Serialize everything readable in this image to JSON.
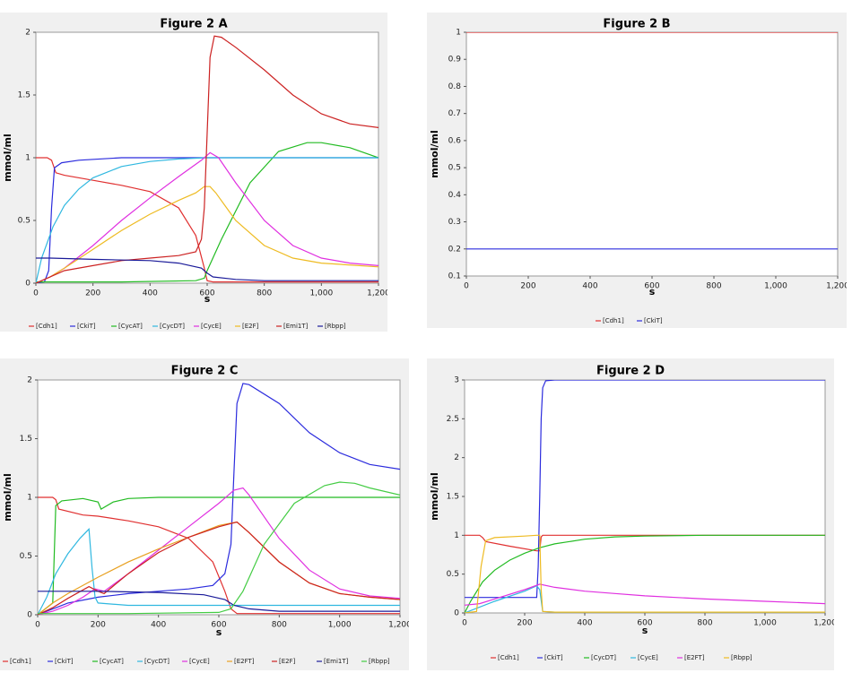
{
  "chart_data": [
    {
      "id": "A",
      "type": "line",
      "title": "Figure 2 A",
      "xlabel": "s",
      "ylabel": "mmol/ml",
      "xlim": [
        0,
        1200
      ],
      "ylim": [
        0,
        2
      ],
      "xticks": [
        0,
        200,
        400,
        600,
        800,
        1000,
        1200
      ],
      "xtick_labels": [
        "0",
        "200",
        "400",
        "600",
        "800",
        "1,000",
        "1,200"
      ],
      "yticks": [
        0,
        0.5,
        1,
        1.5,
        2
      ],
      "ytick_labels": [
        "0",
        "0.5",
        "1",
        "1.5",
        "2"
      ],
      "legend": "bottom",
      "grid": false,
      "series": [
        {
          "name": "[Cdh1]",
          "color": "#e03030",
          "x": [
            0,
            40,
            55,
            70,
            100,
            200,
            300,
            400,
            500,
            560,
            590,
            600,
            620,
            700,
            900,
            1200
          ],
          "y": [
            1,
            1,
            0.98,
            0.88,
            0.86,
            0.82,
            0.78,
            0.73,
            0.6,
            0.38,
            0.12,
            0.02,
            0.01,
            0.01,
            0.01,
            0.01
          ]
        },
        {
          "name": "[CkiT]",
          "color": "#2b2bdd",
          "x": [
            0,
            30,
            45,
            55,
            65,
            90,
            150,
            300,
            600,
            900,
            1200
          ],
          "y": [
            0,
            0.01,
            0.1,
            0.6,
            0.92,
            0.96,
            0.98,
            1.0,
            1.0,
            1.0,
            1.0
          ]
        },
        {
          "name": "[CycAT]",
          "color": "#22bb22",
          "x": [
            0,
            300,
            560,
            590,
            600,
            650,
            750,
            850,
            950,
            1000,
            1100,
            1200
          ],
          "y": [
            0.01,
            0.01,
            0.02,
            0.04,
            0.1,
            0.35,
            0.8,
            1.05,
            1.12,
            1.12,
            1.08,
            1.0
          ]
        },
        {
          "name": "[CycDT]",
          "color": "#30b8e0",
          "x": [
            0,
            20,
            60,
            100,
            150,
            200,
            300,
            400,
            500,
            600,
            800,
            1200
          ],
          "y": [
            0,
            0.2,
            0.45,
            0.62,
            0.75,
            0.84,
            0.93,
            0.97,
            0.99,
            1.0,
            1.0,
            1.0
          ]
        },
        {
          "name": "[CycE]",
          "color": "#e030e0",
          "x": [
            0,
            50,
            100,
            200,
            300,
            400,
            500,
            580,
            610,
            640,
            700,
            800,
            900,
            1000,
            1100,
            1200
          ],
          "y": [
            0,
            0.05,
            0.12,
            0.3,
            0.5,
            0.68,
            0.85,
            0.98,
            1.04,
            1.0,
            0.8,
            0.5,
            0.3,
            0.2,
            0.16,
            0.14
          ]
        },
        {
          "name": "[E2F]",
          "color": "#eebb22",
          "x": [
            0,
            50,
            100,
            200,
            300,
            400,
            500,
            560,
            590,
            610,
            630,
            700,
            800,
            900,
            1000,
            1200
          ],
          "y": [
            0,
            0.05,
            0.12,
            0.27,
            0.42,
            0.55,
            0.66,
            0.72,
            0.77,
            0.77,
            0.72,
            0.5,
            0.3,
            0.2,
            0.16,
            0.13
          ]
        },
        {
          "name": "[Emi1T]",
          "color": "#cc2222",
          "x": [
            0,
            100,
            200,
            300,
            400,
            500,
            560,
            580,
            590,
            600,
            610,
            625,
            650,
            700,
            800,
            900,
            1000,
            1100,
            1200
          ],
          "y": [
            0,
            0.1,
            0.14,
            0.18,
            0.2,
            0.22,
            0.25,
            0.35,
            0.6,
            1.2,
            1.8,
            1.97,
            1.96,
            1.88,
            1.7,
            1.5,
            1.35,
            1.27,
            1.24
          ]
        },
        {
          "name": "[Rbpp]",
          "color": "#1a1a99",
          "x": [
            0,
            50,
            200,
            400,
            500,
            580,
            600,
            620,
            700,
            800,
            1000,
            1200
          ],
          "y": [
            0.2,
            0.2,
            0.19,
            0.18,
            0.16,
            0.12,
            0.08,
            0.05,
            0.03,
            0.02,
            0.02,
            0.02
          ]
        }
      ]
    },
    {
      "id": "B",
      "type": "line",
      "title": "Figure 2 B",
      "xlabel": "s",
      "ylabel": "mmol/ml",
      "xlim": [
        0,
        1200
      ],
      "ylim": [
        0.1,
        1
      ],
      "xticks": [
        0,
        200,
        400,
        600,
        800,
        1000,
        1200
      ],
      "xtick_labels": [
        "0",
        "200",
        "400",
        "600",
        "800",
        "1,000",
        "1,200"
      ],
      "yticks": [
        0.1,
        0.2,
        0.3,
        0.4,
        0.5,
        0.6,
        0.7,
        0.8,
        0.9,
        1
      ],
      "ytick_labels": [
        "0.1",
        "0.2",
        "0.3",
        "0.4",
        "0.5",
        "0.6",
        "0.7",
        "0.8",
        "0.9",
        "1"
      ],
      "legend": "bottom",
      "grid": false,
      "series": [
        {
          "name": "[Cdh1]",
          "color": "#e03030",
          "x": [
            0,
            1200
          ],
          "y": [
            1,
            1
          ]
        },
        {
          "name": "[CkiT]",
          "color": "#2b2bdd",
          "x": [
            0,
            1200
          ],
          "y": [
            0.2,
            0.2
          ]
        }
      ]
    },
    {
      "id": "C",
      "type": "line",
      "title": "Figure 2 C",
      "xlabel": "s",
      "ylabel": "mmol/ml",
      "xlim": [
        0,
        1200
      ],
      "ylim": [
        0,
        2
      ],
      "xticks": [
        0,
        200,
        400,
        600,
        800,
        1000,
        1200
      ],
      "xtick_labels": [
        "0",
        "200",
        "400",
        "600",
        "800",
        "1,000",
        "1,200"
      ],
      "yticks": [
        0,
        0.5,
        1,
        1.5,
        2
      ],
      "ytick_labels": [
        "0",
        "0.5",
        "1",
        "1.5",
        "2"
      ],
      "legend": "bottom",
      "grid": false,
      "series": [
        {
          "name": "[Cdh1]",
          "color": "#e03030",
          "x": [
            0,
            50,
            60,
            70,
            150,
            200,
            300,
            400,
            500,
            580,
            620,
            640,
            660,
            700,
            900,
            1200
          ],
          "y": [
            1,
            1,
            0.98,
            0.9,
            0.85,
            0.84,
            0.8,
            0.75,
            0.65,
            0.45,
            0.2,
            0.05,
            0.01,
            0.01,
            0.01,
            0.01
          ]
        },
        {
          "name": "[CkiT]",
          "color": "#2b2bdd",
          "x": [
            0,
            100,
            200,
            300,
            400,
            500,
            580,
            620,
            640,
            650,
            660,
            680,
            700,
            800,
            900,
            1000,
            1100,
            1200
          ],
          "y": [
            0,
            0.1,
            0.15,
            0.18,
            0.2,
            0.22,
            0.25,
            0.35,
            0.6,
            1.2,
            1.8,
            1.97,
            1.96,
            1.8,
            1.55,
            1.38,
            1.28,
            1.24
          ]
        },
        {
          "name": "[CycAT]",
          "color": "#22bb22",
          "x": [
            0,
            50,
            60,
            80,
            150,
            200,
            210,
            250,
            300,
            400,
            600,
            1200
          ],
          "y": [
            0,
            0.1,
            0.93,
            0.97,
            0.99,
            0.96,
            0.9,
            0.96,
            0.99,
            1.0,
            1.0,
            1.0
          ]
        },
        {
          "name": "[CycDT]",
          "color": "#30b8e0",
          "x": [
            0,
            30,
            60,
            100,
            140,
            170,
            180,
            190,
            200,
            300,
            600,
            1200
          ],
          "y": [
            0,
            0.15,
            0.35,
            0.52,
            0.65,
            0.73,
            0.4,
            0.15,
            0.1,
            0.08,
            0.08,
            0.08
          ]
        },
        {
          "name": "[CycE]",
          "color": "#e030e0",
          "x": [
            0,
            50,
            100,
            150,
            190,
            220,
            300,
            400,
            500,
            600,
            650,
            680,
            700,
            800,
            900,
            1000,
            1100,
            1200
          ],
          "y": [
            0,
            0.03,
            0.08,
            0.15,
            0.22,
            0.2,
            0.35,
            0.55,
            0.75,
            0.95,
            1.06,
            1.08,
            1.02,
            0.65,
            0.38,
            0.22,
            0.16,
            0.14
          ]
        },
        {
          "name": "[E2FT]",
          "color": "#e8a020",
          "x": [
            0,
            50,
            100,
            200,
            300,
            400,
            500,
            600,
            660,
            700,
            800,
            900,
            1000,
            1100,
            1200
          ],
          "y": [
            0,
            0.1,
            0.18,
            0.32,
            0.45,
            0.56,
            0.66,
            0.76,
            0.79,
            0.7,
            0.45,
            0.27,
            0.18,
            0.15,
            0.13
          ]
        },
        {
          "name": "[E2F]",
          "color": "#cc2222",
          "x": [
            0,
            50,
            100,
            170,
            200,
            220,
            300,
            400,
            500,
            600,
            660,
            700,
            800,
            900,
            1000,
            1100,
            1200
          ],
          "y": [
            0,
            0.06,
            0.14,
            0.24,
            0.2,
            0.18,
            0.35,
            0.53,
            0.66,
            0.75,
            0.79,
            0.7,
            0.45,
            0.27,
            0.18,
            0.15,
            0.13
          ]
        },
        {
          "name": "[Emi1T]",
          "color": "#1a1a99",
          "x": [
            0,
            50,
            200,
            400,
            550,
            620,
            650,
            700,
            800,
            1200
          ],
          "y": [
            0.2,
            0.2,
            0.2,
            0.19,
            0.17,
            0.13,
            0.08,
            0.05,
            0.03,
            0.03
          ]
        },
        {
          "name": "[Rbpp]",
          "color": "#44cc44",
          "x": [
            0,
            300,
            600,
            640,
            680,
            750,
            850,
            950,
            1000,
            1050,
            1100,
            1200
          ],
          "y": [
            0.01,
            0.01,
            0.02,
            0.05,
            0.2,
            0.6,
            0.95,
            1.1,
            1.13,
            1.12,
            1.08,
            1.02
          ]
        }
      ]
    },
    {
      "id": "D",
      "type": "line",
      "title": "Figure 2 D",
      "xlabel": "s",
      "ylabel": "mmol/ml",
      "xlim": [
        0,
        1200
      ],
      "ylim": [
        0,
        3
      ],
      "xticks": [
        0,
        200,
        400,
        600,
        800,
        1000,
        1200
      ],
      "xtick_labels": [
        "0",
        "200",
        "400",
        "600",
        "800",
        "1,000",
        "1,200"
      ],
      "yticks": [
        0,
        0.5,
        1,
        1.5,
        2,
        2.5,
        3
      ],
      "ytick_labels": [
        "0",
        "0.5",
        "1",
        "1.5",
        "2",
        "2.5",
        "3"
      ],
      "legend": "bottom",
      "grid": false,
      "series": [
        {
          "name": "[Cdh1]",
          "color": "#e03030",
          "x": [
            0,
            50,
            60,
            70,
            150,
            240,
            250,
            255,
            260,
            300,
            600,
            1200
          ],
          "y": [
            1,
            1,
            0.97,
            0.92,
            0.86,
            0.8,
            0.8,
            0.98,
            1.0,
            1.0,
            1.0,
            1.0
          ]
        },
        {
          "name": "[CkiT]",
          "color": "#2b2bdd",
          "x": [
            0,
            240,
            245,
            250,
            255,
            260,
            270,
            300,
            600,
            1200
          ],
          "y": [
            0.2,
            0.2,
            0.6,
            1.5,
            2.5,
            2.9,
            2.99,
            3.0,
            3.0,
            3.0
          ]
        },
        {
          "name": "[CycDT]",
          "color": "#22bb22",
          "x": [
            0,
            20,
            60,
            100,
            150,
            200,
            250,
            300,
            400,
            500,
            600,
            800,
            1200
          ],
          "y": [
            0,
            0.15,
            0.4,
            0.55,
            0.68,
            0.77,
            0.84,
            0.89,
            0.95,
            0.98,
            0.99,
            1.0,
            1.0
          ]
        },
        {
          "name": "[CycE]",
          "color": "#30b8e0",
          "x": [
            0,
            100,
            200,
            240,
            250,
            260,
            300,
            600,
            1200
          ],
          "y": [
            0,
            0.15,
            0.28,
            0.35,
            0.3,
            0.02,
            0.01,
            0.01,
            0.01
          ]
        },
        {
          "name": "[E2FT]",
          "color": "#e030e0",
          "x": [
            0,
            50,
            100,
            200,
            250,
            300,
            400,
            500,
            600,
            800,
            1000,
            1200
          ],
          "y": [
            0.1,
            0.12,
            0.18,
            0.3,
            0.37,
            0.33,
            0.28,
            0.25,
            0.22,
            0.18,
            0.15,
            0.12
          ]
        },
        {
          "name": "[Rbpp]",
          "color": "#eebb22",
          "x": [
            0,
            40,
            55,
            70,
            100,
            200,
            240,
            250,
            255,
            260,
            300,
            600,
            1200
          ],
          "y": [
            0,
            0.02,
            0.6,
            0.93,
            0.97,
            0.99,
            1.0,
            1.0,
            0.3,
            0.02,
            0.01,
            0.01,
            0.01
          ]
        }
      ]
    }
  ]
}
